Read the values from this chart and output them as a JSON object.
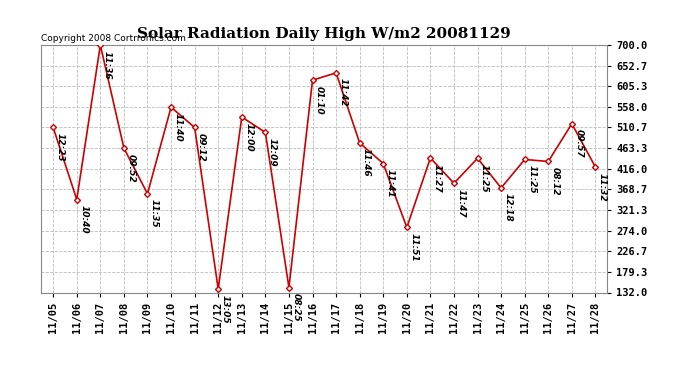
{
  "title": "Solar Radiation Daily High W/m2 20081129",
  "copyright": "Copyright 2008 Cortrronics.com",
  "dates": [
    "11/05",
    "11/06",
    "11/07",
    "11/08",
    "11/09",
    "11/10",
    "11/11",
    "11/12",
    "11/13",
    "11/14",
    "11/15",
    "11/16",
    "11/17",
    "11/18",
    "11/19",
    "11/20",
    "11/21",
    "11/22",
    "11/23",
    "11/24",
    "11/25",
    "11/26",
    "11/27",
    "11/28"
  ],
  "values": [
    510.7,
    345.3,
    700.0,
    463.3,
    358.7,
    557.3,
    510.7,
    140.0,
    534.7,
    499.3,
    143.3,
    619.3,
    636.0,
    475.3,
    428.0,
    281.3,
    440.7,
    382.7,
    440.0,
    372.0,
    437.3,
    432.7,
    519.3,
    420.0
  ],
  "point_labels": [
    "12:23",
    "10:40",
    "11:36",
    "09:52",
    "11:35",
    "11:40",
    "09:12",
    "13:05",
    "12:00",
    "12:09",
    "08:25",
    "01:10",
    "11:42",
    "11:46",
    "11:41",
    "11:51",
    "11:27",
    "11:47",
    "11:25",
    "12:18",
    "11:25",
    "08:12",
    "09:57",
    "11:32"
  ],
  "ylim": [
    132.0,
    700.0
  ],
  "yticks": [
    132.0,
    179.3,
    226.7,
    274.0,
    321.3,
    368.7,
    416.0,
    463.3,
    510.7,
    558.0,
    605.3,
    652.7,
    700.0
  ],
  "line_color": "#cc0000",
  "marker_color": "#cc0000",
  "bg_color": "#ffffff",
  "grid_color": "#bbbbbb",
  "title_fontsize": 11,
  "label_fontsize": 6.5,
  "copyright_fontsize": 6.5,
  "tick_fontsize": 7.5
}
